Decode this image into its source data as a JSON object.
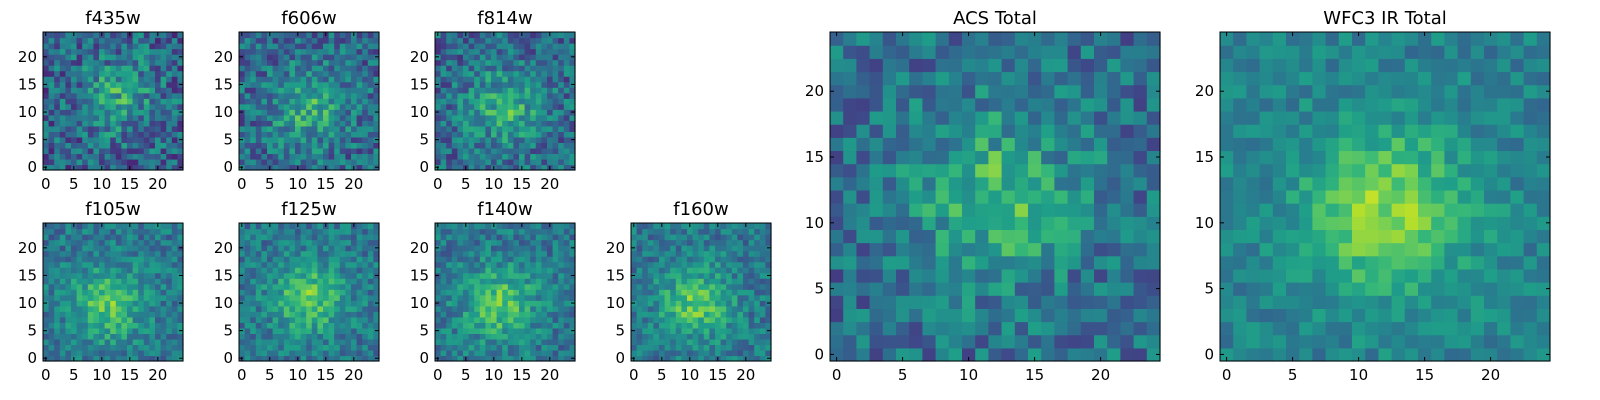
{
  "chart_data": [
    {
      "type": "heatmap",
      "title": "f435w",
      "xticks": [
        "0",
        "5",
        "10",
        "15",
        "20"
      ],
      "yticks": [
        "0",
        "5",
        "10",
        "15",
        "20"
      ],
      "xlim": [
        -0.5,
        24.5
      ],
      "ylim": [
        -0.5,
        24.5
      ],
      "grid_size": 25,
      "colormap": "viridis",
      "grid": false,
      "peak": [
        13,
        13
      ],
      "noise": 0.85
    },
    {
      "type": "heatmap",
      "title": "f606w",
      "xticks": [
        "0",
        "5",
        "10",
        "15",
        "20"
      ],
      "yticks": [
        "0",
        "5",
        "10",
        "15",
        "20"
      ],
      "xlim": [
        -0.5,
        24.5
      ],
      "ylim": [
        -0.5,
        24.5
      ],
      "grid_size": 25,
      "colormap": "viridis",
      "grid": false,
      "peak": [
        12,
        11
      ],
      "noise": 0.7
    },
    {
      "type": "heatmap",
      "title": "f814w",
      "xticks": [
        "0",
        "5",
        "10",
        "15",
        "20"
      ],
      "yticks": [
        "0",
        "5",
        "10",
        "15",
        "20"
      ],
      "xlim": [
        -0.5,
        24.5
      ],
      "ylim": [
        -0.5,
        24.5
      ],
      "grid_size": 25,
      "colormap": "viridis",
      "grid": false,
      "peak": [
        12,
        11
      ],
      "noise": 0.7
    },
    {
      "type": "heatmap",
      "title": "f105w",
      "xticks": [
        "0",
        "5",
        "10",
        "15",
        "20"
      ],
      "yticks": [
        "0",
        "5",
        "10",
        "15",
        "20"
      ],
      "xlim": [
        -0.5,
        24.5
      ],
      "ylim": [
        -0.5,
        24.5
      ],
      "grid_size": 25,
      "colormap": "viridis",
      "grid": false,
      "peak": [
        11,
        10
      ],
      "noise": 0.45
    },
    {
      "type": "heatmap",
      "title": "f125w",
      "xticks": [
        "0",
        "5",
        "10",
        "15",
        "20"
      ],
      "yticks": [
        "0",
        "5",
        "10",
        "15",
        "20"
      ],
      "xlim": [
        -0.5,
        24.5
      ],
      "ylim": [
        -0.5,
        24.5
      ],
      "grid_size": 25,
      "colormap": "viridis",
      "grid": false,
      "peak": [
        12,
        11
      ],
      "noise": 0.45
    },
    {
      "type": "heatmap",
      "title": "f140w",
      "xticks": [
        "0",
        "5",
        "10",
        "15",
        "20"
      ],
      "yticks": [
        "0",
        "5",
        "10",
        "15",
        "20"
      ],
      "xlim": [
        -0.5,
        24.5
      ],
      "ylim": [
        -0.5,
        24.5
      ],
      "grid_size": 25,
      "colormap": "viridis",
      "grid": false,
      "peak": [
        11,
        10
      ],
      "noise": 0.45
    },
    {
      "type": "heatmap",
      "title": "f160w",
      "xticks": [
        "0",
        "5",
        "10",
        "15",
        "20"
      ],
      "yticks": [
        "0",
        "5",
        "10",
        "15",
        "20"
      ],
      "xlim": [
        -0.5,
        24.5
      ],
      "ylim": [
        -0.5,
        24.5
      ],
      "grid_size": 25,
      "colormap": "viridis",
      "grid": false,
      "peak": [
        11,
        10
      ],
      "noise": 0.45
    },
    {
      "type": "heatmap",
      "title": "ACS Total",
      "xticks": [
        "0",
        "5",
        "10",
        "15",
        "20"
      ],
      "yticks": [
        "0",
        "5",
        "10",
        "15",
        "20"
      ],
      "xlim": [
        -0.5,
        24.5
      ],
      "ylim": [
        -0.5,
        24.5
      ],
      "grid_size": 25,
      "colormap": "viridis",
      "grid": false,
      "peak": [
        12,
        12
      ],
      "noise": 0.6
    },
    {
      "type": "heatmap",
      "title": "WFC3 IR Total",
      "xticks": [
        "0",
        "5",
        "10",
        "15",
        "20"
      ],
      "yticks": [
        "0",
        "5",
        "10",
        "15",
        "20"
      ],
      "xlim": [
        -0.5,
        24.5
      ],
      "ylim": [
        -0.5,
        24.5
      ],
      "grid_size": 25,
      "colormap": "viridis",
      "grid": false,
      "peak": [
        12,
        11
      ],
      "noise": 0.3
    }
  ]
}
